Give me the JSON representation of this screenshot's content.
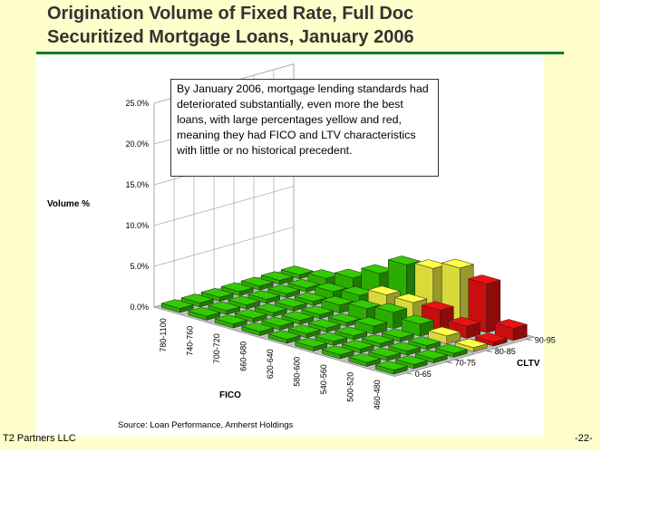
{
  "slide": {
    "title_line1": "Origination Volume of Fixed Rate, Full Doc",
    "title_line2": "Securitized Mortgage Loans, January 2006",
    "footer_left": "T2 Partners LLC",
    "footer_right": "-22-",
    "accent_color": "#007a33",
    "background_color": "#ffffcc"
  },
  "callout": {
    "text": "By January 2006, mortgage lending standards had deteriorated substantially, even more the best loans, with large percentages yellow and red, meaning they had FICO and LTV characteristics with little or no historical precedent."
  },
  "chart_data": {
    "type": "bar",
    "subtype": "3d-bar",
    "ylabel": "Volume %",
    "xlabel": "FICO",
    "zlabel": "CLTV",
    "source": "Source: Loan Performance,  Amherst Holdings",
    "ylim": [
      0,
      25
    ],
    "yticks": [
      "0.0%",
      "5.0%",
      "10.0%",
      "15.0%",
      "20.0%",
      "25.0%"
    ],
    "grid": true,
    "fico_bins": [
      "780-1100",
      "740-760",
      "700-720",
      "660-680",
      "620-640",
      "580-600",
      "540-560",
      "500-520",
      "460-480"
    ],
    "cltv_tick_labels": [
      "0-65",
      "70-75",
      "80-85",
      "90-95"
    ],
    "cltv_rows": 7,
    "colors": {
      "green": "#33cc00",
      "yellow": "#ffff44",
      "red": "#ee1111"
    },
    "series": [
      {
        "values": [
          0.5,
          0.5,
          0.5,
          0.5,
          0.5,
          0.5,
          0.5,
          0.5,
          0.5
        ],
        "colors": [
          "green",
          "green",
          "green",
          "green",
          "green",
          "green",
          "green",
          "green",
          "green"
        ]
      },
      {
        "values": [
          0.5,
          0.5,
          0.5,
          0.5,
          0.5,
          0.5,
          0.5,
          0.5,
          0.5
        ],
        "colors": [
          "green",
          "green",
          "green",
          "green",
          "green",
          "green",
          "green",
          "green",
          "green"
        ]
      },
      {
        "values": [
          0.5,
          0.5,
          0.5,
          0.5,
          0.5,
          0.5,
          0.5,
          0.5,
          0.5
        ],
        "colors": [
          "green",
          "green",
          "green",
          "green",
          "green",
          "green",
          "green",
          "green",
          "green"
        ]
      },
      {
        "values": [
          0.5,
          0.5,
          0.5,
          0.5,
          0.5,
          1.0,
          0.5,
          0.5,
          0.5
        ],
        "colors": [
          "green",
          "green",
          "green",
          "green",
          "green",
          "green",
          "green",
          "green",
          "green"
        ]
      },
      {
        "values": [
          0.5,
          0.5,
          0.5,
          1.0,
          1.5,
          2.0,
          1.5,
          1.0,
          0.5
        ],
        "colors": [
          "green",
          "green",
          "green",
          "green",
          "green",
          "green",
          "green",
          "yellow",
          "yellow"
        ]
      },
      {
        "values": [
          0.5,
          0.5,
          1.0,
          1.5,
          2.5,
          2.5,
          2.5,
          1.5,
          0.5
        ],
        "colors": [
          "green",
          "green",
          "green",
          "green",
          "yellow",
          "yellow",
          "red",
          "red",
          "red"
        ]
      },
      {
        "values": [
          0.5,
          1.0,
          2.0,
          3.5,
          5.5,
          6.0,
          7.0,
          6.0,
          1.5
        ],
        "colors": [
          "green",
          "green",
          "green",
          "green",
          "green",
          "yellow",
          "yellow",
          "red",
          "red"
        ]
      }
    ]
  }
}
